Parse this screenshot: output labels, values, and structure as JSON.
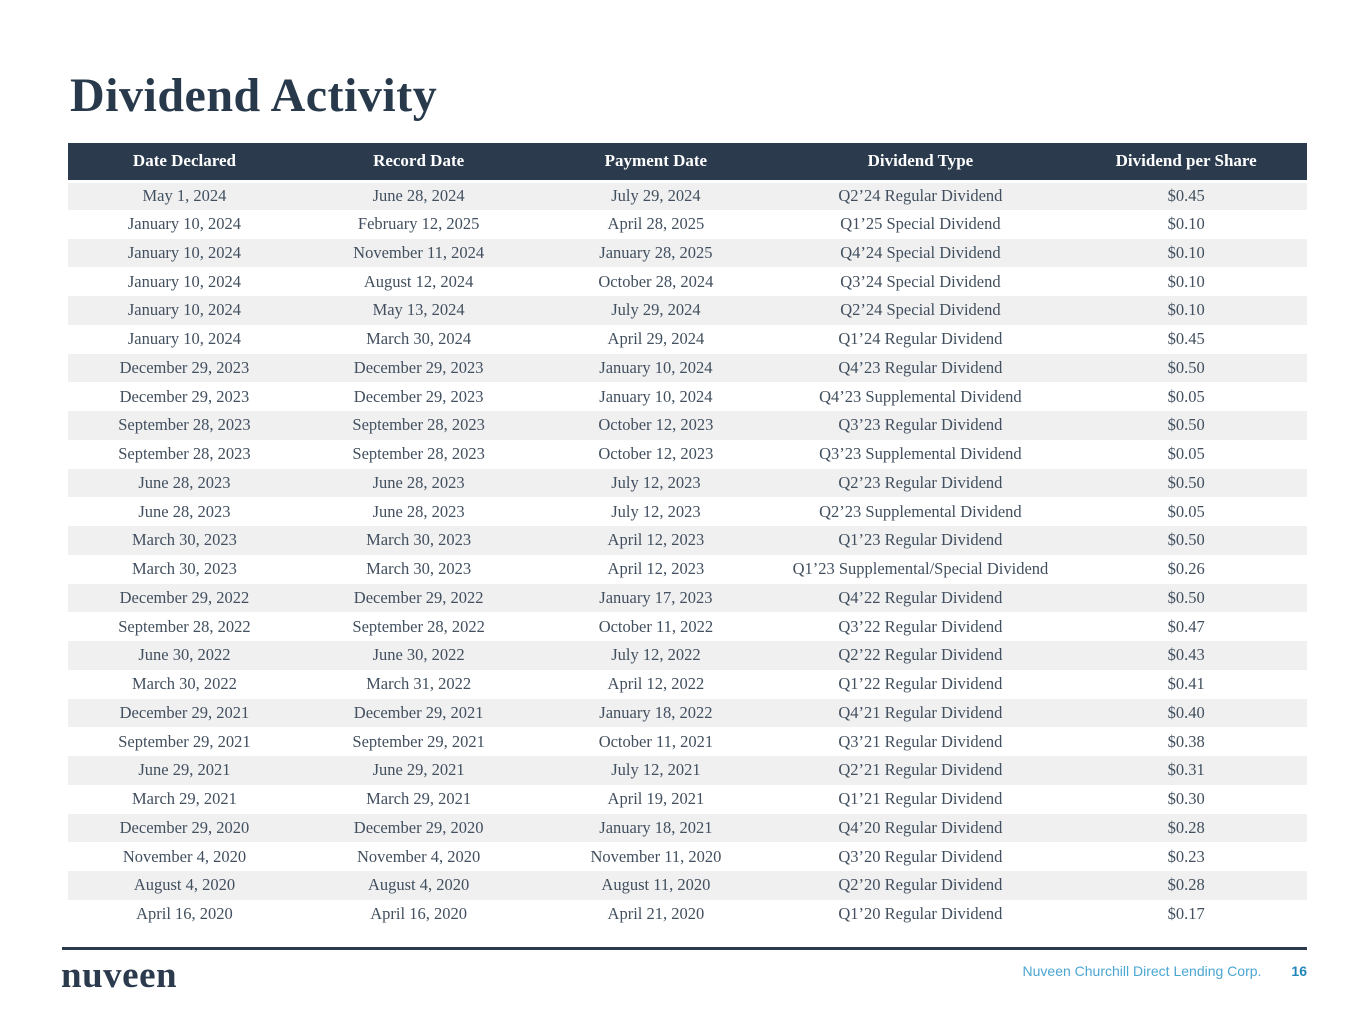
{
  "page": {
    "title": "Dividend Activity",
    "footer": {
      "logo": "nuveen",
      "company": "Nuveen Churchill Direct Lending Corp.",
      "page_number": "16"
    }
  },
  "colors": {
    "header_bg": "#2b3b4d",
    "header_text": "#ffffff",
    "row_stripe": "#f0f0f1",
    "row_text": "#414f5e",
    "title": "#27394b",
    "footer_company": "#4aa6d2",
    "footer_page_number": "#2287b8",
    "footer_rule": "#2b3b4d"
  },
  "table": {
    "columns": [
      "Date Declared",
      "Record Date",
      "Payment Date",
      "Dividend Type",
      "Dividend per Share"
    ],
    "rows": [
      [
        "May 1, 2024",
        "June 28, 2024",
        "July 29, 2024",
        "Q2’24 Regular Dividend",
        "$0.45"
      ],
      [
        "January 10, 2024",
        "February 12, 2025",
        "April 28, 2025",
        "Q1’25 Special Dividend",
        "$0.10"
      ],
      [
        "January 10, 2024",
        "November 11, 2024",
        "January 28, 2025",
        "Q4’24 Special Dividend",
        "$0.10"
      ],
      [
        "January 10, 2024",
        "August 12, 2024",
        "October 28, 2024",
        "Q3’24 Special Dividend",
        "$0.10"
      ],
      [
        "January 10, 2024",
        "May 13, 2024",
        "July 29, 2024",
        "Q2’24 Special Dividend",
        "$0.10"
      ],
      [
        "January 10, 2024",
        "March 30, 2024",
        "April 29, 2024",
        "Q1’24 Regular Dividend",
        "$0.45"
      ],
      [
        "December 29, 2023",
        "December 29, 2023",
        "January 10, 2024",
        "Q4’23 Regular Dividend",
        "$0.50"
      ],
      [
        "December 29, 2023",
        "December 29, 2023",
        "January 10, 2024",
        "Q4’23 Supplemental Dividend",
        "$0.05"
      ],
      [
        "September 28, 2023",
        "September 28, 2023",
        "October 12, 2023",
        "Q3’23 Regular Dividend",
        "$0.50"
      ],
      [
        "September 28, 2023",
        "September 28, 2023",
        "October 12, 2023",
        "Q3’23 Supplemental Dividend",
        "$0.05"
      ],
      [
        "June 28, 2023",
        "June 28, 2023",
        "July 12, 2023",
        "Q2’23 Regular Dividend",
        "$0.50"
      ],
      [
        "June 28, 2023",
        "June 28, 2023",
        "July 12, 2023",
        "Q2’23 Supplemental Dividend",
        "$0.05"
      ],
      [
        "March 30, 2023",
        "March 30, 2023",
        "April 12, 2023",
        "Q1’23 Regular Dividend",
        "$0.50"
      ],
      [
        "March 30, 2023",
        "March 30, 2023",
        "April 12, 2023",
        "Q1’23 Supplemental/Special Dividend",
        "$0.26"
      ],
      [
        "December 29, 2022",
        "December 29, 2022",
        "January 17, 2023",
        "Q4’22 Regular Dividend",
        "$0.50"
      ],
      [
        "September 28, 2022",
        "September 28, 2022",
        "October 11, 2022",
        "Q3’22 Regular Dividend",
        "$0.47"
      ],
      [
        "June 30, 2022",
        "June 30, 2022",
        "July 12, 2022",
        "Q2’22 Regular Dividend",
        "$0.43"
      ],
      [
        "March 30, 2022",
        "March 31, 2022",
        "April 12, 2022",
        "Q1’22 Regular Dividend",
        "$0.41"
      ],
      [
        "December 29, 2021",
        "December 29, 2021",
        "January 18, 2022",
        "Q4’21 Regular Dividend",
        "$0.40"
      ],
      [
        "September 29, 2021",
        "September 29, 2021",
        "October 11, 2021",
        "Q3’21 Regular Dividend",
        "$0.38"
      ],
      [
        "June 29, 2021",
        "June 29, 2021",
        "July 12, 2021",
        "Q2’21 Regular Dividend",
        "$0.31"
      ],
      [
        "March 29, 2021",
        "March 29, 2021",
        "April 19, 2021",
        "Q1’21 Regular Dividend",
        "$0.30"
      ],
      [
        "December 29, 2020",
        "December 29, 2020",
        "January 18, 2021",
        "Q4’20 Regular Dividend",
        "$0.28"
      ],
      [
        "November 4, 2020",
        "November 4, 2020",
        "November 11, 2020",
        "Q3’20 Regular Dividend",
        "$0.23"
      ],
      [
        "August 4, 2020",
        "August 4, 2020",
        "August 11, 2020",
        "Q2’20 Regular Dividend",
        "$0.28"
      ],
      [
        "April 16, 2020",
        "April 16, 2020",
        "April 21, 2020",
        "Q1’20 Regular Dividend",
        "$0.17"
      ]
    ]
  }
}
